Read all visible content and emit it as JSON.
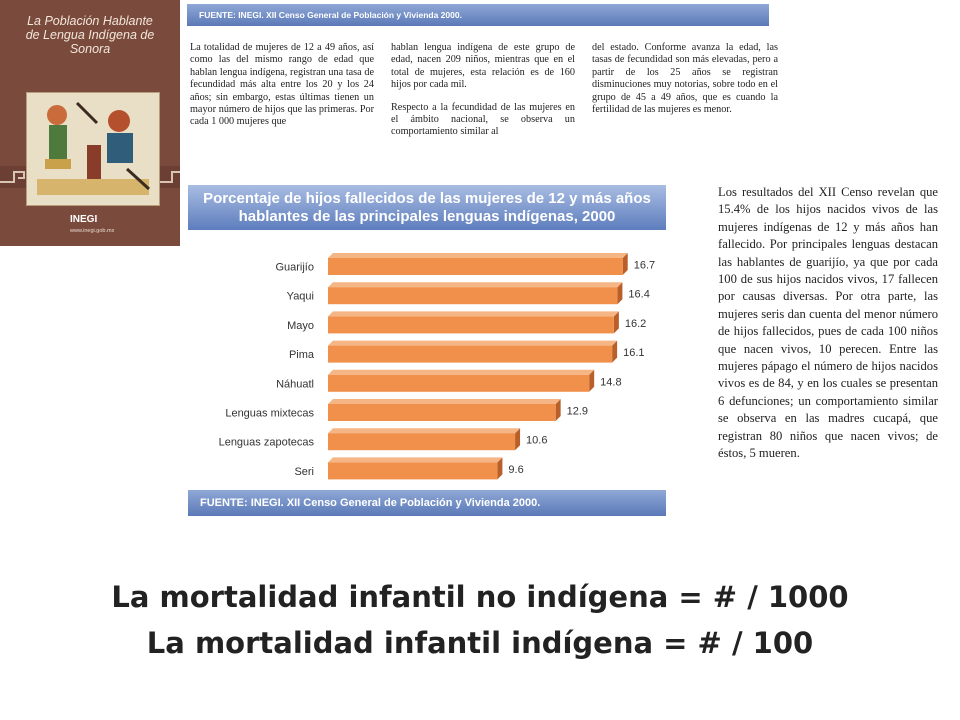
{
  "cover": {
    "title_line1": "La Población Hablante",
    "title_line2": "de Lengua Indígena de",
    "title_line3": "Sonora",
    "logo": "INEGI",
    "url": "www.inegi.gob.mx"
  },
  "top_source": "FUENTE: INEGI. XII Censo General de Población y Vivienda 2000.",
  "columns": {
    "col1": "La totalidad de mujeres de 12 a 49 años, así como las del mismo rango de edad que hablan lengua indígena, registran una tasa de fecundidad más alta entre los 20 y los 24 años; sin embargo, estas últimas tienen un mayor número de hijos que las primeras. Por cada 1 000 mujeres que",
    "col2_p1": "hablan lengua indígena de este grupo de edad, nacen 209 niños, mientras que en el total de mujeres, esta relación es de 160 hijos por cada mil.",
    "col2_p2": "Respecto a la fecundidad de las mujeres en el ámbito nacional, se observa un comportamiento similar al",
    "col3": "del estado. Conforme avanza la edad, las tasas de fecundidad son más elevadas, pero a partir de los 25 años se registran disminuciones muy notorias, sobre todo en el grupo de 45 a 49 años, que es cuando la fertilidad de las mujeres es menor."
  },
  "chart_title_line1": "Porcentaje de hijos fallecidos de las mujeres de 12 y más años",
  "chart_title_line2": "hablantes de las principales lenguas indígenas, 2000",
  "bottom_source": "FUENTE: INEGI. XII Censo General de Población y Vivienda 2000.",
  "side_text": "Los resultados del XII Censo revelan que 15.4% de los hijos nacidos vivos de las mujeres indígenas de 12 y más años han fallecido. Por principales lenguas destacan las hablantes de guarijío, ya que por cada 100 de sus hijos nacidos vivos, 17 fallecen por causas diversas. Por otra parte, las mujeres seris dan cuenta del menor número de hijos fallecidos, pues de cada 100 niños que nacen vivos, 10 perecen. Entre las mujeres pápago el número de hijos nacidos vivos es de 84, y en los cuales se presentan 6 defunciones; un comportamiento similar se observa en las madres cucapá, que registran 80 niños que nacen vivos; de éstos, 5 mueren.",
  "big_line1": "La mortalidad infantil no indígena = # / 1000",
  "big_line2": "La mortalidad infantil indígena = # / 100",
  "colors": {
    "bar": "#f0904a",
    "bar_side": "#b9602a",
    "banner": "#5d7dbd"
  },
  "chart_data": {
    "type": "bar",
    "orientation": "horizontal",
    "title": "Porcentaje de hijos fallecidos de las mujeres de 12 y más años hablantes de las principales lenguas indígenas, 2000",
    "categories": [
      "Guarijío",
      "Yaqui",
      "Mayo",
      "Pima",
      "Náhuatl",
      "Lenguas mixtecas",
      "Lenguas zapotecas",
      "Seri"
    ],
    "values": [
      16.7,
      16.4,
      16.2,
      16.1,
      14.8,
      12.9,
      10.6,
      9.6
    ],
    "xlim": [
      0,
      17
    ]
  }
}
